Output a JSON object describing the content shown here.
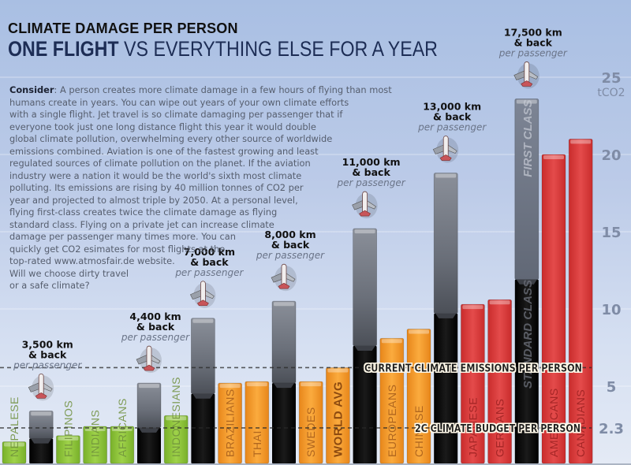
{
  "title": {
    "line1": "CLIMATE DAMAGE PER PERSON",
    "line2_bold": "ONE FLIGHT",
    "line2_rest": " VS EVERYTHING ELSE FOR A YEAR"
  },
  "consider": {
    "lead": "Consider",
    "lines": [
      ": A person creates more climate damage in a few hours of flying than most",
      "humans create in years. You can wipe out years of your own climate efforts",
      "with a single flight. Jet travel is so climate damaging per passenger that if",
      "everyone took just one long distance flight this year it would double",
      "global climate pollution, overwhelming every other source of worldwide",
      "emissions combined. Aviation is one of the fastest growing and least",
      "regulated sources of climate pollution on the planet. If the aviation",
      "industry were a nation it would be the world's sixth most climate",
      "polluting. Its emissions are rising by 40 million tonnes of CO2 per",
      "year and projected to almost triple by 2050. At a personal level,",
      "flying first-class creates twice the climate damage as flying",
      "standard class. Flying on a private jet can increase climate",
      "damage per passenger many times more. You can",
      "quickly get CO2 esimates for most flights at the",
      "top-rated www.atmosfair.de website.",
      "Will we choose dirty travel",
      "or a safe climate?"
    ]
  },
  "colors": {
    "green": "#8cc43c",
    "orange": "#f39a2a",
    "red": "#dc3a3a",
    "flight_gray": "#6d7280",
    "flight_black": "#0a0a0a",
    "axis_text": "#7f8ca6"
  },
  "chart_data": {
    "type": "bar",
    "title": "CLIMATE DAMAGE PER PERSON — ONE FLIGHT VS EVERYTHING ELSE FOR A YEAR",
    "ylabel": "tCO2",
    "ylim": [
      0,
      25
    ],
    "yticks": [
      2.3,
      5,
      10,
      15,
      20,
      25
    ],
    "ytick_labels": [
      "2.3",
      "5",
      "10",
      "15",
      "20",
      "25"
    ],
    "yunit_label": "tCO2",
    "grid": true,
    "reference_lines": [
      {
        "name": "current",
        "value": 6.2,
        "label": "CURRENT CLIMATE EMISSIONS PER PERSON"
      },
      {
        "name": "budget",
        "value": 2.3,
        "label": "2C CLIMATE BUDGET PER PERSON"
      }
    ],
    "bars": [
      {
        "kind": "country",
        "label": "NEPALESE",
        "value": 1.4,
        "color": "green"
      },
      {
        "kind": "flight",
        "value": 3.4,
        "base": 1.6,
        "flight_label": "3,500 km",
        "sub": "& back",
        "per": "per passenger"
      },
      {
        "kind": "country",
        "label": "FILIPINOS",
        "value": 1.8,
        "color": "green"
      },
      {
        "kind": "country",
        "label": "INDIANS",
        "value": 2.4,
        "color": "green"
      },
      {
        "kind": "country",
        "label": "AFRICANS",
        "value": 2.4,
        "color": "green"
      },
      {
        "kind": "flight",
        "value": 5.2,
        "base": 2.3,
        "flight_label": "4,400 km",
        "sub": "& back",
        "per": "per passenger"
      },
      {
        "kind": "country",
        "label": "INDONESIANS",
        "value": 3.1,
        "color": "green"
      },
      {
        "kind": "flight",
        "value": 9.4,
        "base": 4.5,
        "flight_label": "7,000 km",
        "sub": "& back",
        "per": "per passenger"
      },
      {
        "kind": "country",
        "label": "BRAZILIANS",
        "value": 5.2,
        "color": "orange"
      },
      {
        "kind": "country",
        "label": "THAI",
        "value": 5.3,
        "color": "orange"
      },
      {
        "kind": "flight",
        "value": 10.5,
        "base": 5.2,
        "flight_label": "8,000 km",
        "sub": "& back",
        "per": "per passenger"
      },
      {
        "kind": "country",
        "label": "SWEDES",
        "value": 5.3,
        "color": "orange"
      },
      {
        "kind": "country",
        "label": "WORLD AVG",
        "value": 6.2,
        "color": "orange",
        "bold": true
      },
      {
        "kind": "flight",
        "value": 15.2,
        "base": 7.6,
        "flight_label": "11,000 km",
        "sub": "& back",
        "per": "per passenger"
      },
      {
        "kind": "country",
        "label": "EUROPEANS",
        "value": 8.1,
        "color": "orange"
      },
      {
        "kind": "country",
        "label": "CHINESE",
        "value": 8.7,
        "color": "orange"
      },
      {
        "kind": "flight",
        "value": 18.8,
        "base": 9.7,
        "flight_label": "13,000 km",
        "sub": "& back",
        "per": "per passenger"
      },
      {
        "kind": "country",
        "label": "JAPANESE",
        "value": 10.3,
        "color": "red"
      },
      {
        "kind": "country",
        "label": "GERMANS",
        "value": 10.6,
        "color": "red"
      },
      {
        "kind": "flight",
        "value": 23.6,
        "base": 11.9,
        "flight_label": "17,500 km",
        "sub": "& back",
        "per": "per passenger",
        "top_label": "FIRST CLASS",
        "base_label": "STANDARD CLASS"
      },
      {
        "kind": "country",
        "label": "AMERICANS",
        "value": 20.0,
        "color": "red"
      },
      {
        "kind": "country",
        "label": "CANADIANS",
        "value": 21.0,
        "color": "red"
      }
    ]
  }
}
